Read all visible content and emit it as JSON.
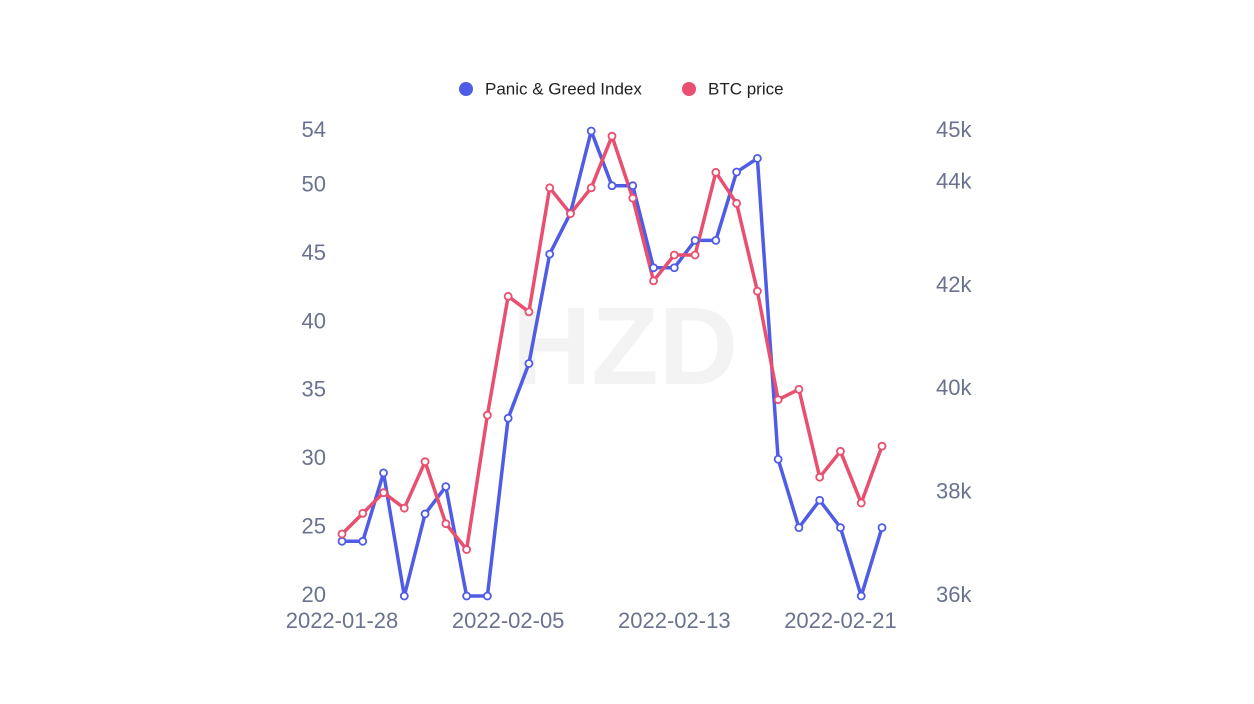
{
  "chart_data": {
    "type": "line",
    "watermark": "HZD",
    "categories": [
      "2022-01-28",
      null,
      null,
      null,
      null,
      null,
      null,
      null,
      "2022-02-05",
      null,
      null,
      null,
      null,
      null,
      null,
      null,
      "2022-02-13",
      null,
      null,
      null,
      null,
      null,
      null,
      null,
      "2022-02-21",
      null,
      null
    ],
    "series": [
      {
        "name": "Panic & Greed Index",
        "color": "#4f5ce6",
        "axis": "y",
        "values": [
          24,
          24,
          29,
          20,
          26,
          28,
          20,
          20,
          33,
          37,
          45,
          48,
          54,
          50,
          50,
          44,
          44,
          46,
          46,
          51,
          52,
          30,
          25,
          27,
          25,
          20,
          25
        ]
      },
      {
        "name": "BTC price",
        "color": "#e94f6f",
        "axis": "y2",
        "values": [
          37200,
          37600,
          38000,
          37700,
          38600,
          37400,
          36900,
          39500,
          41800,
          41500,
          43900,
          43400,
          43900,
          44900,
          43700,
          42100,
          42600,
          42600,
          44200,
          43600,
          41900,
          39800,
          40000,
          38300,
          38800,
          37800,
          38900
        ]
      }
    ],
    "ylim": [
      20,
      54
    ],
    "yticks": [
      20,
      25,
      30,
      35,
      40,
      45,
      50,
      54
    ],
    "y2lim": [
      36000,
      45000
    ],
    "y2ticks": [
      {
        "value": 36000,
        "label": "36k"
      },
      {
        "value": 38000,
        "label": "38k"
      },
      {
        "value": 40000,
        "label": "40k"
      },
      {
        "value": 42000,
        "label": "42k"
      },
      {
        "value": 44000,
        "label": "44k"
      },
      {
        "value": 45000,
        "label": "45k"
      }
    ],
    "grid": false,
    "legend": "top"
  }
}
